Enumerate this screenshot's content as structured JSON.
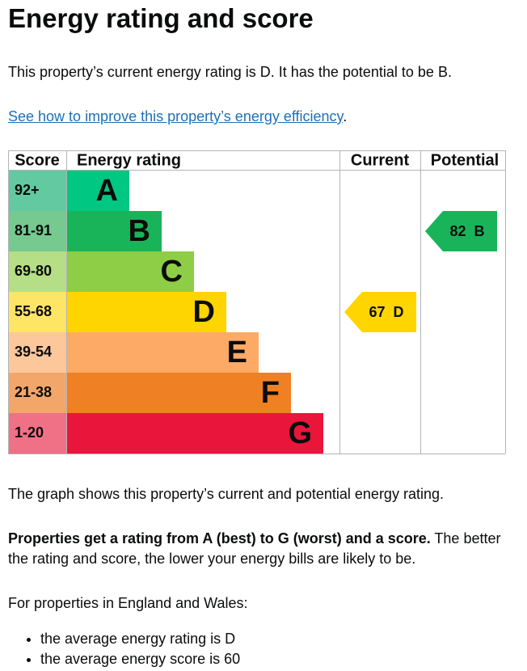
{
  "heading": "Energy rating and score",
  "intro": "This property’s current energy rating is D. It has the potential to be B.",
  "link": {
    "text": "See how to improve this property’s energy efficiency",
    "suffix": "."
  },
  "chart": {
    "headers": [
      "Score",
      "Energy rating",
      "Current",
      "Potential"
    ],
    "bands": [
      {
        "range": "92+",
        "letter": "A",
        "color": "#00c781",
        "score_color": "#63c9a0"
      },
      {
        "range": "81-91",
        "letter": "B",
        "color": "#19b459",
        "score_color": "#76c98f"
      },
      {
        "range": "69-80",
        "letter": "C",
        "color": "#8dce46",
        "score_color": "#b6de86"
      },
      {
        "range": "55-68",
        "letter": "D",
        "color": "#ffd500",
        "score_color": "#ffe565"
      },
      {
        "range": "39-54",
        "letter": "E",
        "color": "#fcaa65",
        "score_color": "#fdc79c"
      },
      {
        "range": "21-38",
        "letter": "F",
        "color": "#ef8023",
        "score_color": "#f3a66a"
      },
      {
        "range": "1-20",
        "letter": "G",
        "color": "#e9153b",
        "score_color": "#f07086"
      }
    ],
    "current": {
      "score": 67,
      "rating": "D"
    },
    "potential": {
      "score": 82,
      "rating": "B"
    }
  },
  "graph_note": "The graph shows this property’s current and potential energy rating.",
  "explain": {
    "bold": "Properties get a rating from A (best) to G (worst) and a score.",
    "rest": " The better the rating and score, the lower your energy bills are likely to be."
  },
  "average": {
    "intro": "For properties in England and Wales:",
    "items": [
      "the average energy rating is D",
      "the average energy score is 60"
    ]
  }
}
